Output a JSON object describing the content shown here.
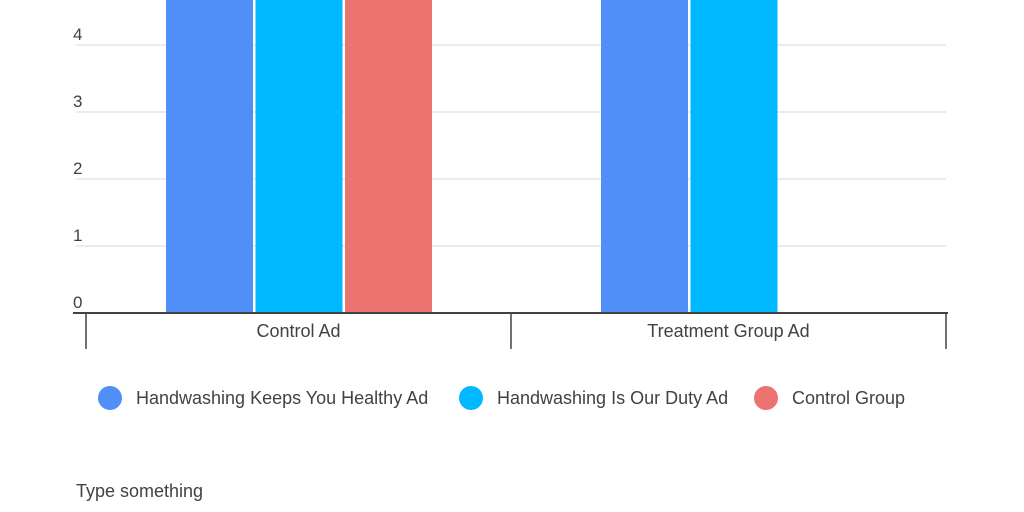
{
  "chart_data": {
    "type": "bar",
    "categories": [
      "Control Ad",
      "Treatment Group Ad"
    ],
    "series": [
      {
        "name": "Handwashing Keeps You Healthy Ad",
        "color": "#4f8ff7",
        "values": [
          5,
          5
        ]
      },
      {
        "name": "Handwashing Is Our Duty Ad",
        "color": "#00b8ff",
        "values": [
          5,
          5
        ]
      },
      {
        "name": "Control Group",
        "color": "#ed7370",
        "values": [
          5,
          0
        ]
      }
    ],
    "yticks": [
      "0",
      "1",
      "2",
      "3",
      "4"
    ],
    "ylim": [
      0,
      4.7
    ],
    "grid": true,
    "legend_position": "bottom",
    "note": "Bars extend above the visible top edge of the image"
  },
  "caption": "Type something"
}
